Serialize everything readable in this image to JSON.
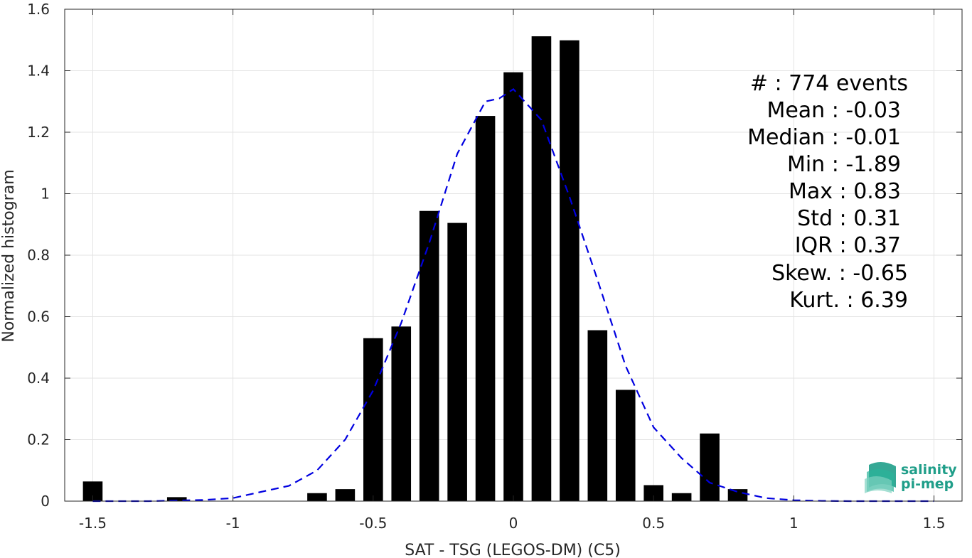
{
  "chart_data": {
    "type": "bar",
    "xlabel": "SAT - TSG (LEGOS-DM) (C5)",
    "ylabel": "Normalized histogram",
    "xlim": [
      -1.6,
      1.6
    ],
    "ylim": [
      0,
      1.6
    ],
    "grid": true,
    "x_ticks": [
      -1.5,
      -1,
      -0.5,
      0,
      0.5,
      1,
      1.5
    ],
    "x_tick_labels": [
      "-1.5",
      "-1",
      "-0.5",
      "0",
      "0.5",
      "1",
      "1.5"
    ],
    "y_ticks": [
      0,
      0.2,
      0.4,
      0.6,
      0.8,
      1,
      1.2,
      1.4,
      1.6
    ],
    "y_tick_labels": [
      "0",
      "0.2",
      "0.4",
      "0.6",
      "0.8",
      "1",
      "1.2",
      "1.4",
      "1.6"
    ],
    "bar_color": "#000000",
    "bar_width": 0.07,
    "bars": {
      "x": [
        -1.5,
        -1.2,
        -0.7,
        -0.6,
        -0.5,
        -0.4,
        -0.3,
        -0.2,
        -0.1,
        0.0,
        0.1,
        0.2,
        0.3,
        0.4,
        0.5,
        0.6,
        0.7,
        0.8
      ],
      "y": [
        0.064,
        0.013,
        0.026,
        0.039,
        0.53,
        0.568,
        0.944,
        0.905,
        1.253,
        1.395,
        1.512,
        1.499,
        0.556,
        0.362,
        0.052,
        0.026,
        0.22,
        0.039
      ]
    },
    "fit_curve": {
      "color": "#0000e0",
      "style": "dashed",
      "x": [
        -1.5,
        -1.4,
        -1.3,
        -1.2,
        -1.1,
        -1.0,
        -0.9,
        -0.8,
        -0.7,
        -0.6,
        -0.5,
        -0.4,
        -0.3,
        -0.2,
        -0.1,
        -0.05,
        0.0,
        0.1,
        0.2,
        0.3,
        0.4,
        0.5,
        0.6,
        0.7,
        0.8,
        0.9,
        1.0,
        1.1,
        1.2,
        1.3,
        1.4,
        1.5
      ],
      "y": [
        0.0,
        0.0,
        0.0,
        0.002,
        0.004,
        0.01,
        0.03,
        0.05,
        0.1,
        0.2,
        0.36,
        0.58,
        0.84,
        1.13,
        1.3,
        1.31,
        1.34,
        1.24,
        0.99,
        0.72,
        0.44,
        0.24,
        0.14,
        0.06,
        0.03,
        0.01,
        0.003,
        0.001,
        0.0,
        0.0,
        0.0,
        0.0
      ]
    }
  },
  "stats": {
    "count": "#  : 774 events",
    "mean": "Mean : -0.03",
    "median": "Median : -0.01",
    "min": "Min : -1.89",
    "max": "Max : 0.83",
    "std": "Std : 0.31",
    "iqr": "IQR : 0.37",
    "skew": "Skew. : -0.65",
    "kurt": "Kurt. : 6.39"
  },
  "logo": {
    "line1": "salinity",
    "line2": "pi-mep",
    "icon": "salinity-wave-icon",
    "color": "#1f9e89"
  }
}
